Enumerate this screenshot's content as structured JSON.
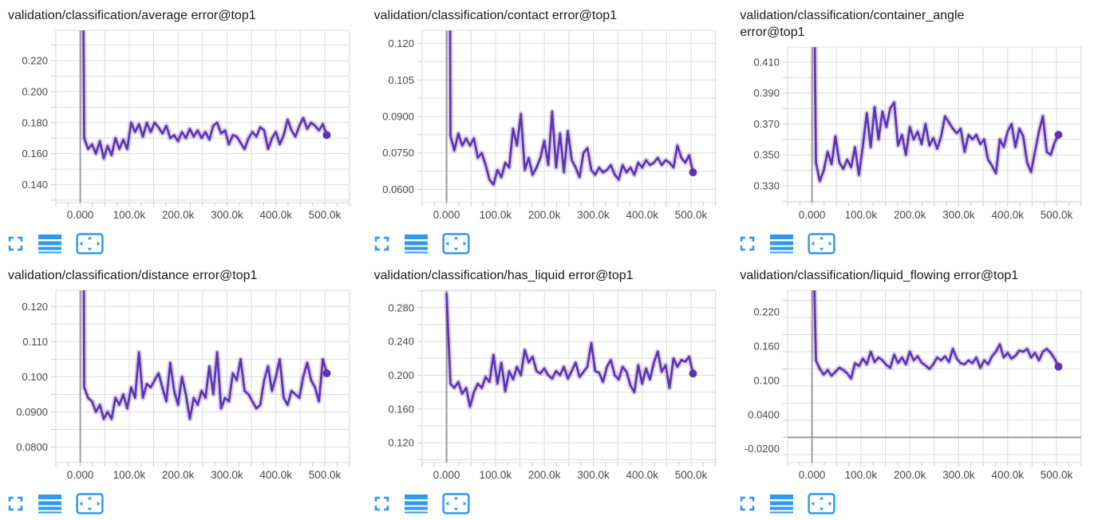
{
  "style": {
    "background": "#ffffff",
    "line_color": "#5e35b1",
    "halo_color": "rgba(94,53,177,0.22)",
    "grid_color": "#dcdcdc",
    "tick_color": "#cccccc",
    "zero_line_color": "#9a9a9a",
    "tick_label_color": "#47474f",
    "title_color": "#1b1b1b",
    "icon_color": "#2e99f0"
  },
  "toolbar": {
    "buttons": [
      "fullscreen-icon",
      "log-scale-icon",
      "fit-domain-icon"
    ]
  },
  "x_axis": {
    "domain": [
      -50000,
      550000
    ],
    "grid_step": 50000,
    "tick_step": 25000,
    "labels": [
      [
        0,
        "0.000"
      ],
      [
        100000,
        "100.0k"
      ],
      [
        200000,
        "200.0k"
      ],
      [
        300000,
        "300.0k"
      ],
      [
        400000,
        "400.0k"
      ],
      [
        500000,
        "500.0k"
      ]
    ]
  },
  "chart_data": [
    {
      "type": "line",
      "title": "validation/classification/average error@top1",
      "y_domain": [
        0.1285,
        0.2395
      ],
      "y_grid_step": 0.01,
      "y_ticks": [
        {
          "v": 0.14,
          "label": "0.140"
        },
        {
          "v": 0.16,
          "label": "0.160"
        },
        {
          "v": 0.18,
          "label": "0.180"
        },
        {
          "v": 0.2,
          "label": "0.200"
        },
        {
          "v": 0.22,
          "label": "0.220"
        }
      ],
      "x_start": 0,
      "x_step": 8000,
      "zero_line_y": false,
      "values": [
        0.55,
        0.17,
        0.163,
        0.166,
        0.16,
        0.168,
        0.157,
        0.165,
        0.159,
        0.17,
        0.163,
        0.169,
        0.163,
        0.18,
        0.174,
        0.179,
        0.171,
        0.18,
        0.174,
        0.18,
        0.177,
        0.173,
        0.178,
        0.17,
        0.172,
        0.168,
        0.174,
        0.17,
        0.176,
        0.171,
        0.175,
        0.17,
        0.174,
        0.169,
        0.178,
        0.18,
        0.173,
        0.175,
        0.166,
        0.172,
        0.171,
        0.167,
        0.163,
        0.17,
        0.174,
        0.171,
        0.177,
        0.175,
        0.163,
        0.17,
        0.174,
        0.166,
        0.172,
        0.182,
        0.175,
        0.171,
        0.178,
        0.183,
        0.176,
        0.18,
        0.178,
        0.175,
        0.179,
        0.172
      ]
    },
    {
      "type": "line",
      "title": "validation/classification/contact error@top1",
      "y_domain": [
        0.0546,
        0.1254
      ],
      "y_grid_step": 0.0075,
      "y_ticks": [
        {
          "v": 0.06,
          "label": "0.0600"
        },
        {
          "v": 0.075,
          "label": "0.0750"
        },
        {
          "v": 0.09,
          "label": "0.0900"
        },
        {
          "v": 0.105,
          "label": "0.105"
        },
        {
          "v": 0.12,
          "label": "0.120"
        }
      ],
      "x_start": 0,
      "x_step": 8000,
      "zero_line_y": false,
      "values": [
        0.5,
        0.082,
        0.076,
        0.083,
        0.078,
        0.081,
        0.078,
        0.081,
        0.073,
        0.075,
        0.07,
        0.064,
        0.062,
        0.068,
        0.065,
        0.071,
        0.069,
        0.085,
        0.078,
        0.091,
        0.068,
        0.073,
        0.066,
        0.069,
        0.073,
        0.08,
        0.07,
        0.092,
        0.069,
        0.083,
        0.067,
        0.084,
        0.072,
        0.069,
        0.065,
        0.075,
        0.077,
        0.068,
        0.066,
        0.069,
        0.067,
        0.068,
        0.07,
        0.066,
        0.064,
        0.07,
        0.067,
        0.069,
        0.066,
        0.071,
        0.069,
        0.072,
        0.07,
        0.071,
        0.073,
        0.07,
        0.072,
        0.071,
        0.069,
        0.078,
        0.073,
        0.071,
        0.074,
        0.067
      ]
    },
    {
      "type": "line",
      "title": "validation/classification/container_angle error@top1",
      "y_domain": [
        0.3192,
        0.4197
      ],
      "y_grid_step": 0.01,
      "y_ticks": [
        {
          "v": 0.33,
          "label": "0.330"
        },
        {
          "v": 0.35,
          "label": "0.350"
        },
        {
          "v": 0.37,
          "label": "0.370"
        },
        {
          "v": 0.39,
          "label": "0.390"
        },
        {
          "v": 0.41,
          "label": "0.410"
        }
      ],
      "x_start": 0,
      "x_step": 8000,
      "zero_line_y": false,
      "values": [
        0.6,
        0.345,
        0.333,
        0.34,
        0.352,
        0.344,
        0.362,
        0.345,
        0.341,
        0.347,
        0.342,
        0.355,
        0.337,
        0.356,
        0.377,
        0.355,
        0.381,
        0.36,
        0.378,
        0.368,
        0.38,
        0.384,
        0.356,
        0.363,
        0.35,
        0.368,
        0.36,
        0.365,
        0.357,
        0.37,
        0.356,
        0.361,
        0.354,
        0.362,
        0.375,
        0.371,
        0.367,
        0.364,
        0.367,
        0.352,
        0.363,
        0.36,
        0.363,
        0.357,
        0.36,
        0.347,
        0.343,
        0.338,
        0.36,
        0.355,
        0.365,
        0.37,
        0.355,
        0.367,
        0.362,
        0.345,
        0.339,
        0.352,
        0.365,
        0.375,
        0.352,
        0.35,
        0.358,
        0.363
      ]
    },
    {
      "type": "line",
      "title": "validation/classification/distance error@top1",
      "y_domain": [
        0.0756,
        0.1246
      ],
      "y_grid_step": 0.005,
      "y_ticks": [
        {
          "v": 0.08,
          "label": "0.0800"
        },
        {
          "v": 0.09,
          "label": "0.0900"
        },
        {
          "v": 0.1,
          "label": "0.100"
        },
        {
          "v": 0.11,
          "label": "0.110"
        },
        {
          "v": 0.12,
          "label": "0.120"
        }
      ],
      "x_start": 0,
      "x_step": 8000,
      "zero_line_y": false,
      "values": [
        0.4,
        0.097,
        0.094,
        0.093,
        0.09,
        0.092,
        0.088,
        0.09,
        0.088,
        0.094,
        0.092,
        0.095,
        0.091,
        0.097,
        0.094,
        0.107,
        0.094,
        0.098,
        0.097,
        0.099,
        0.101,
        0.097,
        0.093,
        0.104,
        0.096,
        0.092,
        0.1,
        0.095,
        0.088,
        0.094,
        0.092,
        0.096,
        0.094,
        0.103,
        0.095,
        0.107,
        0.091,
        0.094,
        0.093,
        0.101,
        0.099,
        0.105,
        0.096,
        0.095,
        0.093,
        0.091,
        0.092,
        0.099,
        0.103,
        0.096,
        0.1,
        0.105,
        0.094,
        0.092,
        0.096,
        0.095,
        0.094,
        0.1,
        0.104,
        0.099,
        0.097,
        0.093,
        0.105,
        0.101
      ]
    },
    {
      "type": "line",
      "title": "validation/classification/has_liquid error@top1",
      "y_domain": [
        0.0966,
        0.3005
      ],
      "y_grid_step": 0.02,
      "y_ticks": [
        {
          "v": 0.12,
          "label": "0.120"
        },
        {
          "v": 0.16,
          "label": "0.160"
        },
        {
          "v": 0.2,
          "label": "0.200"
        },
        {
          "v": 0.24,
          "label": "0.240"
        },
        {
          "v": 0.28,
          "label": "0.280"
        }
      ],
      "x_start": 0,
      "x_step": 8000,
      "zero_line_y": false,
      "values": [
        0.296,
        0.19,
        0.185,
        0.192,
        0.178,
        0.185,
        0.163,
        0.18,
        0.19,
        0.185,
        0.198,
        0.192,
        0.224,
        0.19,
        0.215,
        0.181,
        0.205,
        0.195,
        0.21,
        0.2,
        0.23,
        0.215,
        0.222,
        0.205,
        0.202,
        0.208,
        0.2,
        0.196,
        0.205,
        0.2,
        0.21,
        0.196,
        0.205,
        0.215,
        0.198,
        0.204,
        0.21,
        0.238,
        0.205,
        0.203,
        0.192,
        0.21,
        0.218,
        0.2,
        0.195,
        0.21,
        0.204,
        0.188,
        0.18,
        0.212,
        0.19,
        0.208,
        0.195,
        0.215,
        0.228,
        0.204,
        0.212,
        0.185,
        0.22,
        0.21,
        0.218,
        0.216,
        0.222,
        0.202
      ]
    },
    {
      "type": "line",
      "title": "validation/classification/liquid_flowing error@top1",
      "y_domain": [
        -0.044,
        0.2575
      ],
      "y_grid_step": 0.03,
      "y_ticks": [
        {
          "v": -0.02,
          "label": "-0.0200"
        },
        {
          "v": 0.04,
          "label": "0.0400"
        },
        {
          "v": 0.1,
          "label": "0.100"
        },
        {
          "v": 0.16,
          "label": "0.160"
        },
        {
          "v": 0.22,
          "label": "0.220"
        }
      ],
      "x_start": 0,
      "x_step": 8000,
      "zero_line_y": true,
      "values": [
        0.45,
        0.135,
        0.12,
        0.11,
        0.118,
        0.108,
        0.115,
        0.122,
        0.118,
        0.112,
        0.103,
        0.13,
        0.125,
        0.138,
        0.128,
        0.15,
        0.132,
        0.14,
        0.135,
        0.127,
        0.122,
        0.145,
        0.13,
        0.14,
        0.128,
        0.15,
        0.135,
        0.142,
        0.131,
        0.126,
        0.12,
        0.128,
        0.14,
        0.135,
        0.142,
        0.132,
        0.155,
        0.138,
        0.13,
        0.128,
        0.135,
        0.13,
        0.14,
        0.122,
        0.135,
        0.128,
        0.142,
        0.15,
        0.163,
        0.14,
        0.148,
        0.138,
        0.143,
        0.152,
        0.15,
        0.155,
        0.14,
        0.148,
        0.135,
        0.15,
        0.155,
        0.148,
        0.138,
        0.124
      ]
    }
  ]
}
